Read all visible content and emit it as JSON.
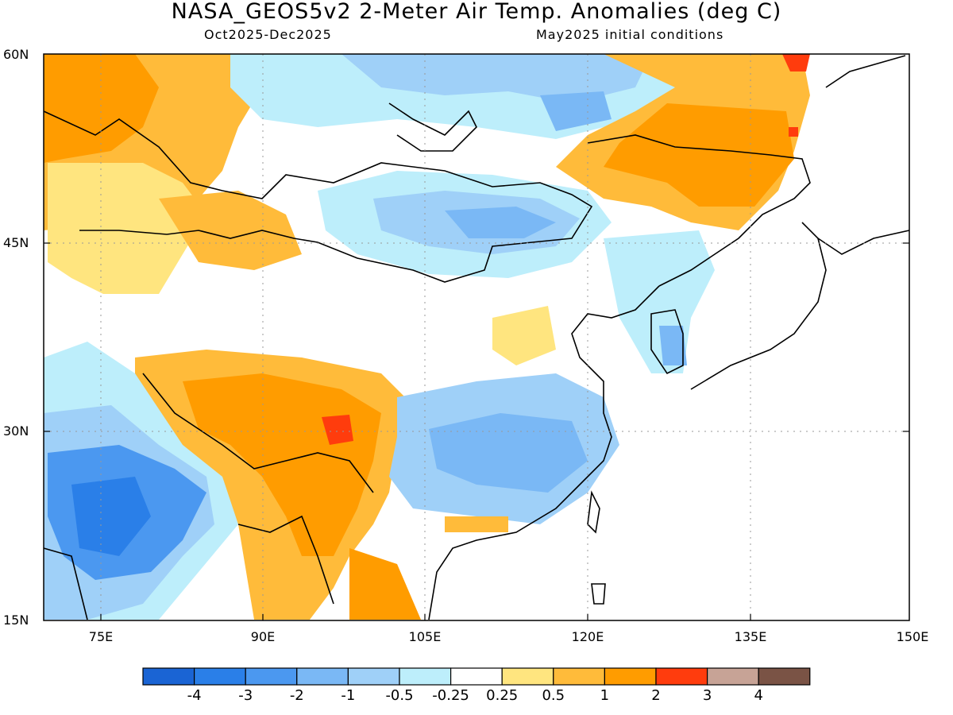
{
  "title": "NASA_GEOS5v2 2-Meter Air Temp. Anomalies (deg C)",
  "subtitle_left": "Oct2025-Dec2025",
  "subtitle_right": "May2025 initial conditions",
  "lat_labels": [
    "60N",
    "45N",
    "30N",
    "15N"
  ],
  "lon_labels": [
    "75E",
    "90E",
    "105E",
    "120E",
    "135E",
    "150E"
  ],
  "colorbar": {
    "colors": [
      "#1a64d4",
      "#2a7fe8",
      "#4b98f0",
      "#7ab8f5",
      "#9fd0f8",
      "#bdeefb",
      "#ffffff",
      "#ffe57f",
      "#ffbb3a",
      "#ff9c00",
      "#ff3c0d",
      "#c7a396",
      "#7a5345"
    ],
    "labels": [
      "-4",
      "-3",
      "-2",
      "-1",
      "-0.5",
      "-0.25",
      "0.25",
      "0.5",
      "1",
      "2",
      "3",
      "4"
    ]
  }
}
